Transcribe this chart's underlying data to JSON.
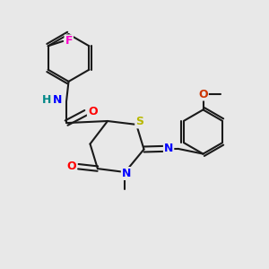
{
  "bg_color": "#e8e8e8",
  "bond_color": "#1a1a1a",
  "bond_width": 1.5,
  "atom_colors": {
    "N": "#0000ff",
    "O": "#ff0000",
    "S": "#b8b800",
    "F": "#ff00cc",
    "H": "#008888",
    "O_methoxy": "#cc3300"
  }
}
